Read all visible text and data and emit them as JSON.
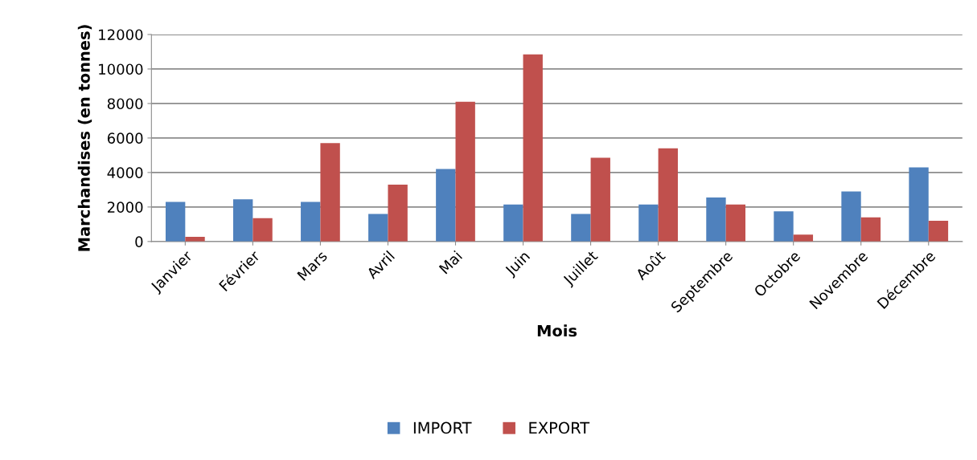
{
  "chart_data": {
    "type": "bar",
    "xlabel": "Mois",
    "ylabel": "Marchandises (en tonnes)",
    "categories": [
      "Janvier",
      "Février",
      "Mars",
      "Avril",
      "Mai",
      "Juin",
      "Juillet",
      "Août",
      "Septembre",
      "Octobre",
      "Novembre",
      "Décembre"
    ],
    "series": [
      {
        "name": "IMPORT",
        "color": "#4f81bd",
        "values": [
          2300,
          2450,
          2300,
          1600,
          4200,
          2150,
          1600,
          2150,
          2550,
          1750,
          2900,
          4300
        ]
      },
      {
        "name": "EXPORT",
        "color": "#c0504d",
        "values": [
          270,
          1350,
          5700,
          3300,
          8100,
          10850,
          4850,
          5400,
          2150,
          400,
          1400,
          1200
        ]
      }
    ],
    "ylim": [
      0,
      12000
    ],
    "yticks": [
      0,
      2000,
      4000,
      6000,
      8000,
      10000,
      12000
    ],
    "grid": "y",
    "legend": "bottom"
  }
}
